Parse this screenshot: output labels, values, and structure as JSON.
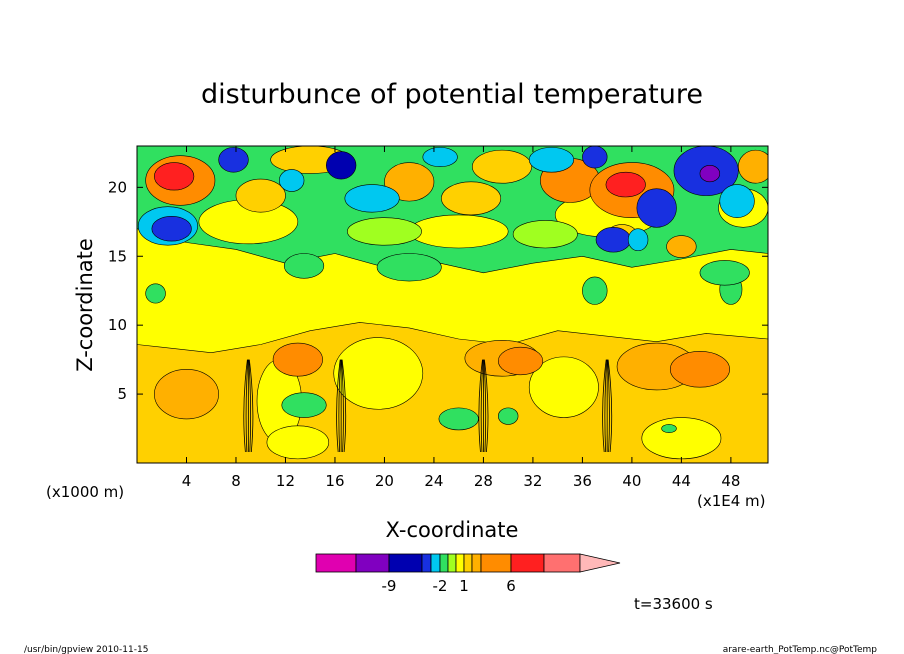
{
  "chart_data": {
    "type": "heatmap",
    "title": "disturbunce of potential temperature",
    "xlabel": "X-coordinate",
    "ylabel": "Z-coordinate",
    "x_units_label": "(x1E4 m)",
    "y_units_label": "(x1000 m)",
    "xlim": [
      0,
      51
    ],
    "ylim": [
      0,
      23
    ],
    "x_ticks": [
      4,
      8,
      12,
      16,
      20,
      24,
      28,
      32,
      36,
      40,
      44,
      48
    ],
    "y_ticks": [
      5,
      10,
      15,
      20
    ],
    "time_label": "t=33600 s",
    "colorbar": {
      "level_colors": [
        "#e000b0",
        "#8000c0",
        "#0000b0",
        "#1830e0",
        "#00c8f0",
        "#30e060",
        "#a0ff20",
        "#ffff00",
        "#ffd000",
        "#ffb000",
        "#ff8c00",
        "#ff2020",
        "#ff7070",
        "#ffb8b8"
      ],
      "level_values": [
        -12,
        -9,
        -6,
        -3,
        -2,
        -1,
        0,
        1,
        2,
        3,
        6,
        9,
        12
      ],
      "labels": [
        {
          "text": "-9",
          "value": -9
        },
        {
          "text": "-2",
          "value": -2
        },
        {
          "text": "1",
          "value": 1
        },
        {
          "text": "6",
          "value": 6
        }
      ]
    }
  },
  "footer": {
    "left": "/usr/bin/gpview   2010-11-15",
    "right": "arare-earth_PotTemp.nc@PotTemp"
  }
}
